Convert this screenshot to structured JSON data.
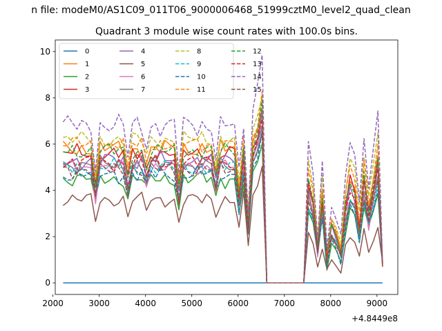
{
  "chart_data": {
    "type": "line",
    "suptitle": "n file: modeM0/AS1C09_011T06_9000006468_51999cztM0_level2_quad_clean",
    "title": "Quadrant 3 module wise count rates with 100.0s bins.",
    "xlabel": "",
    "ylabel": "",
    "x_offset_label": "+4.8449e8",
    "xlim": [
      2050,
      9450
    ],
    "ylim": [
      -0.5,
      10.5
    ],
    "x_ticks": [
      2000,
      3000,
      4000,
      5000,
      6000,
      7000,
      8000,
      9000
    ],
    "y_ticks": [
      0,
      2,
      4,
      6,
      8,
      10
    ],
    "grid": false,
    "legend": {
      "placement": "top-left",
      "columns": 4
    },
    "x": [
      2220,
      2320,
      2420,
      2520,
      2620,
      2720,
      2820,
      2920,
      3020,
      3120,
      3220,
      3320,
      3420,
      3520,
      3620,
      3720,
      3820,
      3920,
      4020,
      4120,
      4220,
      4320,
      4420,
      4520,
      4620,
      4720,
      4820,
      4920,
      5020,
      5120,
      5220,
      5320,
      5420,
      5520,
      5620,
      5720,
      5820,
      5920,
      6020,
      6120,
      6220,
      6320,
      6420,
      6520,
      6620,
      6720,
      6820,
      6920,
      7020,
      7120,
      7220,
      7320,
      7420,
      7520,
      7620,
      7720,
      7820,
      7920,
      8020,
      8120,
      8220,
      8320,
      8420,
      8520,
      8620,
      8720,
      8820,
      8920,
      9020,
      9120
    ],
    "gap_start_index": 44,
    "gap_end_index": 52,
    "series": [
      {
        "name": "0",
        "color": "#1f77b4",
        "style": "solid",
        "base": 0.0,
        "amp": 0.0,
        "tailmul": 0.0
      },
      {
        "name": "1",
        "color": "#ff7f0e",
        "style": "solid",
        "base": 5.8,
        "amp": 0.35,
        "tailmul": 1.0
      },
      {
        "name": "2",
        "color": "#2ca02c",
        "style": "solid",
        "base": 4.5,
        "amp": 0.35,
        "tailmul": 0.9
      },
      {
        "name": "3",
        "color": "#d62728",
        "style": "solid",
        "base": 5.6,
        "amp": 0.35,
        "tailmul": 1.0
      },
      {
        "name": "4",
        "color": "#9467bd",
        "style": "solid",
        "base": 5.3,
        "amp": 0.35,
        "tailmul": 1.0
      },
      {
        "name": "5",
        "color": "#8c564b",
        "style": "solid",
        "base": 3.6,
        "amp": 0.3,
        "tailmul": 0.7
      },
      {
        "name": "6",
        "color": "#e377c2",
        "style": "solid",
        "base": 5.0,
        "amp": 0.35,
        "tailmul": 0.95
      },
      {
        "name": "7",
        "color": "#7f7f7f",
        "style": "solid",
        "base": 5.1,
        "amp": 0.35,
        "tailmul": 0.95
      },
      {
        "name": "8",
        "color": "#bcbd22",
        "style": "dashed",
        "base": 6.2,
        "amp": 0.35,
        "tailmul": 1.1
      },
      {
        "name": "9",
        "color": "#17becf",
        "style": "dashed",
        "base": 5.0,
        "amp": 0.35,
        "tailmul": 0.9
      },
      {
        "name": "10",
        "color": "#1f77b4",
        "style": "dashed",
        "base": 4.7,
        "amp": 0.35,
        "tailmul": 0.9
      },
      {
        "name": "11",
        "color": "#ff7f0e",
        "style": "dashed",
        "base": 6.0,
        "amp": 0.35,
        "tailmul": 1.05
      },
      {
        "name": "12",
        "color": "#2ca02c",
        "style": "dashed",
        "base": 5.7,
        "amp": 0.35,
        "tailmul": 1.0
      },
      {
        "name": "13",
        "color": "#d62728",
        "style": "dashed",
        "base": 5.2,
        "amp": 0.35,
        "tailmul": 1.0
      },
      {
        "name": "14",
        "color": "#9467bd",
        "style": "dashed",
        "base": 6.8,
        "amp": 0.45,
        "tailmul": 1.15
      },
      {
        "name": "15",
        "color": "#8c564b",
        "style": "dashed",
        "base": 4.9,
        "amp": 0.35,
        "tailmul": 0.95
      }
    ]
  }
}
